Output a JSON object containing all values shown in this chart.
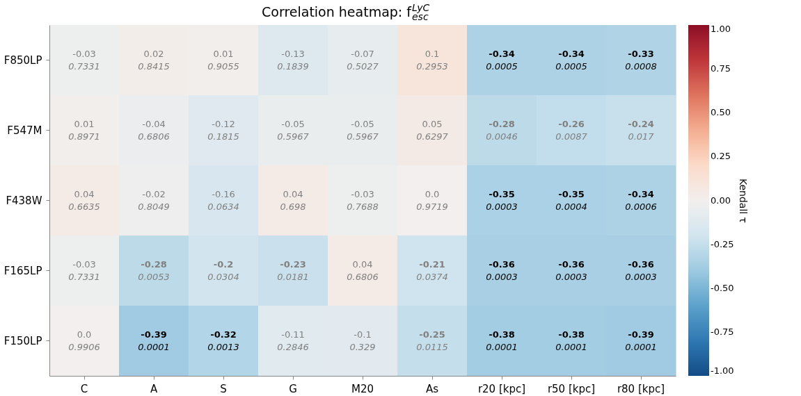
{
  "chart_data": {
    "type": "heatmap",
    "title": "Correlation heatmap: f$_{esc}$$^{LyC}$",
    "categories": [
      "C",
      "A",
      "S",
      "G",
      "M20",
      "As",
      "r20 [kpc]",
      "r50 [kpc]",
      "r80 [kpc]"
    ],
    "y_categories": [
      "F850LP",
      "F547M",
      "F438W",
      "F165LP",
      "F150LP"
    ],
    "cells": [
      [
        -0.03,
        0.02,
        0.01,
        -0.13,
        -0.07,
        0.1,
        -0.34,
        -0.34,
        -0.33
      ],
      [
        0.01,
        -0.04,
        -0.12,
        -0.05,
        -0.05,
        0.05,
        -0.28,
        -0.26,
        -0.24
      ],
      [
        0.04,
        -0.02,
        -0.16,
        0.04,
        -0.03,
        0.0,
        -0.35,
        -0.35,
        -0.34
      ],
      [
        -0.03,
        -0.28,
        -0.2,
        -0.23,
        0.04,
        -0.21,
        -0.36,
        -0.36,
        -0.36
      ],
      [
        0.0,
        -0.39,
        -0.32,
        -0.11,
        -0.1,
        -0.25,
        -0.38,
        -0.38,
        -0.39
      ]
    ],
    "cell_labels": [
      [
        "-0.03\n0.7331",
        "0.02\n0.8415",
        "0.01\n0.9055",
        "-0.13\n0.1839",
        "-0.07\n0.5027",
        "0.1\n0.2953",
        "-0.34\n0.0005",
        "-0.34\n0.0005",
        "-0.33\n0.0008"
      ],
      [
        "0.01\n0.8971",
        "-0.04\n0.6806",
        "-0.12\n0.1815",
        "-0.05\n0.5967",
        "-0.05\n0.5967",
        "0.05\n0.6297",
        "-0.28\n0.0046",
        "-0.26\n0.0087",
        "-0.24\n0.017"
      ],
      [
        "0.04\n0.6635",
        "-0.02\n0.8049",
        "-0.16\n0.0634",
        "0.04\n0.698",
        "-0.03\n0.7688",
        "0.0\n0.9719",
        "-0.35\n0.0003",
        "-0.35\n0.0004",
        "-0.34\n0.0006"
      ],
      [
        "-0.03\n0.7331",
        "-0.28\n0.0053",
        "-0.2\n0.0304",
        "-0.23\n0.0181",
        "0.04\n0.6806",
        "-0.21\n0.0374",
        "-0.36\n0.0003",
        "-0.36\n0.0003",
        "-0.36\n0.0003"
      ],
      [
        "0.0\n0.9906",
        "-0.39\n0.0001",
        "-0.32\n0.0013",
        "-0.11\n0.2846",
        "-0.1\n0.329",
        "-0.25\n0.0115",
        "-0.38\n0.0001",
        "-0.38\n0.0001",
        "-0.39\n0.0001"
      ]
    ],
    "clabel": "Kendall τ",
    "clim": [
      -1,
      1
    ],
    "cticks": [
      {
        "value": -1,
        "label": "-1.00"
      },
      {
        "value": -0.75,
        "label": "-0.75"
      },
      {
        "value": -0.5,
        "label": "-0.50"
      },
      {
        "value": -0.25,
        "label": "-0.25"
      },
      {
        "value": 0,
        "label": "0.00"
      },
      {
        "value": 0.25,
        "label": "0.25"
      },
      {
        "value": 0.5,
        "label": "0.50"
      },
      {
        "value": 0.75,
        "label": "0.75"
      },
      {
        "value": 1,
        "label": "1.00"
      }
    ]
  }
}
